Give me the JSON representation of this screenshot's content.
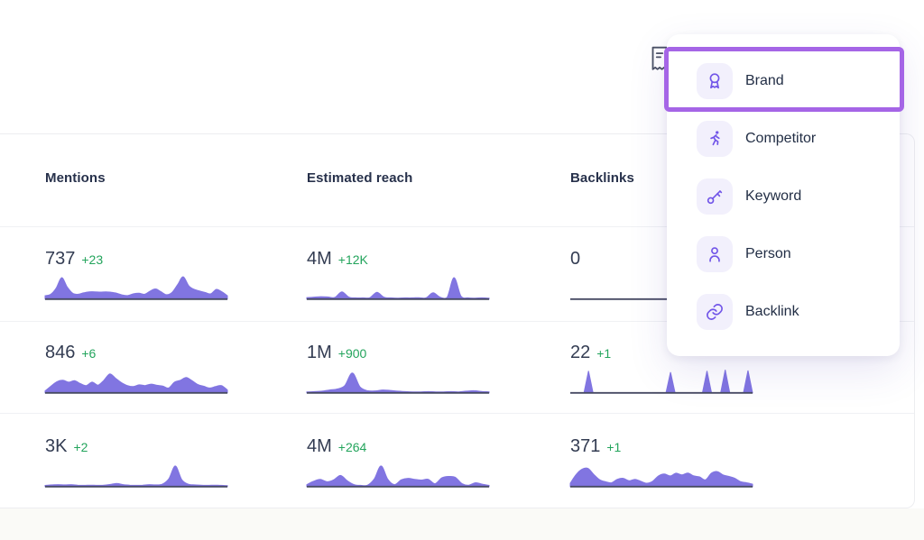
{
  "colors": {
    "spark_fill": "#8175E1",
    "spark_baseline": "#474A63",
    "delta_green": "#23A45C",
    "value_text": "#333C52",
    "header_text": "#27314B",
    "menu_text": "#222E45",
    "icon_violet": "#7155E8",
    "icon_tile_bg": "#F2F0FC",
    "highlight_purple": "#A565E6",
    "separator": "#ECEDF0",
    "page_lower_bg": "#FAFAF7"
  },
  "toolbar": {
    "notes_icon": "receipt-icon"
  },
  "table": {
    "columns": [
      {
        "label": "Mentions"
      },
      {
        "label": "Estimated reach"
      },
      {
        "label": "Backlinks"
      }
    ],
    "rows": [
      {
        "cells": [
          {
            "value": "737",
            "delta": "+23",
            "spark": {
              "type": "area",
              "smooth": true,
              "values": [
                0.14,
                0.2,
                0.45,
                0.88,
                0.5,
                0.24,
                0.2,
                0.26,
                0.3,
                0.3,
                0.29,
                0.3,
                0.28,
                0.24,
                0.17,
                0.15,
                0.22,
                0.24,
                0.2,
                0.33,
                0.42,
                0.3,
                0.18,
                0.28,
                0.6,
                0.92,
                0.55,
                0.4,
                0.33,
                0.27,
                0.22,
                0.4,
                0.3,
                0.14
              ]
            }
          },
          {
            "value": "4M",
            "delta": "+12K",
            "spark": {
              "type": "area",
              "smooth": true,
              "values": [
                0.06,
                0.08,
                0.1,
                0.09,
                0.07,
                0.3,
                0.08,
                0.05,
                0.05,
                0.06,
                0.28,
                0.08,
                0.05,
                0.04,
                0.05,
                0.05,
                0.06,
                0.05,
                0.26,
                0.08,
                0.06,
                0.88,
                0.12,
                0.05,
                0.04,
                0.05,
                0.04
              ]
            }
          },
          {
            "value": "0",
            "delta": "",
            "spark": {
              "type": "area",
              "smooth": false,
              "values": [
                0,
                0
              ]
            }
          }
        ]
      },
      {
        "cells": [
          {
            "value": "846",
            "delta": "+6",
            "spark": {
              "type": "area",
              "smooth": true,
              "values": [
                0.08,
                0.28,
                0.46,
                0.52,
                0.44,
                0.5,
                0.38,
                0.3,
                0.44,
                0.32,
                0.52,
                0.78,
                0.6,
                0.42,
                0.3,
                0.26,
                0.33,
                0.3,
                0.36,
                0.31,
                0.28,
                0.2,
                0.44,
                0.52,
                0.63,
                0.5,
                0.34,
                0.27,
                0.2,
                0.26,
                0.3,
                0.12
              ]
            }
          },
          {
            "value": "1M",
            "delta": "+900",
            "spark": {
              "type": "area",
              "smooth": true,
              "values": [
                0.04,
                0.05,
                0.07,
                0.12,
                0.16,
                0.3,
                0.82,
                0.25,
                0.09,
                0.08,
                0.12,
                0.1,
                0.07,
                0.05,
                0.04,
                0.04,
                0.05,
                0.04,
                0.04,
                0.05,
                0.04,
                0.07,
                0.09,
                0.06,
                0.04
              ]
            }
          },
          {
            "value": "22",
            "delta": "+1",
            "spark": {
              "type": "area",
              "smooth": false,
              "values": [
                0,
                0,
                0,
                0,
                0.9,
                0,
                0,
                0,
                0,
                0,
                0,
                0,
                0,
                0,
                0,
                0,
                0,
                0,
                0,
                0,
                0,
                0,
                0.85,
                0,
                0,
                0,
                0,
                0,
                0,
                0,
                0.9,
                0,
                0,
                0,
                0.95,
                0,
                0,
                0,
                0,
                0.92,
                0
              ]
            }
          }
        ]
      },
      {
        "cells": [
          {
            "value": "3K",
            "delta": "+2",
            "spark": {
              "type": "area",
              "smooth": true,
              "values": [
                0.05,
                0.07,
                0.08,
                0.07,
                0.08,
                0.06,
                0.05,
                0.06,
                0.05,
                0.06,
                0.09,
                0.13,
                0.08,
                0.06,
                0.05,
                0.06,
                0.08,
                0.07,
                0.1,
                0.32,
                0.85,
                0.28,
                0.1,
                0.07,
                0.06,
                0.05,
                0.06,
                0.05,
                0.04
              ]
            }
          },
          {
            "value": "4M",
            "delta": "+264",
            "spark": {
              "type": "area",
              "smooth": true,
              "values": [
                0.08,
                0.22,
                0.3,
                0.2,
                0.28,
                0.46,
                0.24,
                0.08,
                0.05,
                0.06,
                0.32,
                0.85,
                0.3,
                0.08,
                0.28,
                0.34,
                0.3,
                0.27,
                0.3,
                0.12,
                0.36,
                0.42,
                0.38,
                0.12,
                0.06,
                0.16,
                0.1,
                0.05
              ]
            }
          },
          {
            "value": "371",
            "delta": "+1",
            "spark": {
              "type": "area",
              "smooth": true,
              "values": [
                0.14,
                0.5,
                0.72,
                0.75,
                0.5,
                0.28,
                0.2,
                0.16,
                0.3,
                0.34,
                0.24,
                0.3,
                0.22,
                0.14,
                0.22,
                0.44,
                0.52,
                0.44,
                0.55,
                0.48,
                0.56,
                0.44,
                0.4,
                0.28,
                0.55,
                0.62,
                0.48,
                0.42,
                0.34,
                0.2,
                0.16,
                0.1
              ]
            }
          }
        ]
      }
    ]
  },
  "menu": {
    "items": [
      {
        "label": "Brand",
        "icon": "award-icon",
        "selected": true
      },
      {
        "label": "Competitor",
        "icon": "runner-icon",
        "selected": false
      },
      {
        "label": "Keyword",
        "icon": "key-icon",
        "selected": false
      },
      {
        "label": "Person",
        "icon": "person-icon",
        "selected": false
      },
      {
        "label": "Backlink",
        "icon": "link-icon",
        "selected": false
      }
    ]
  }
}
